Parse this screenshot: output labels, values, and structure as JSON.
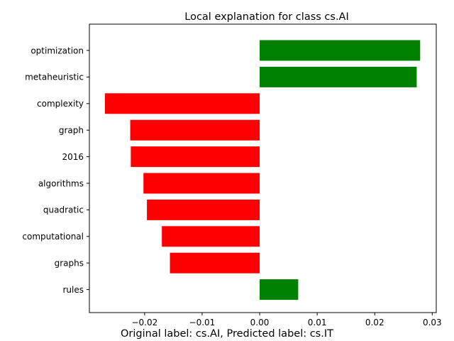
{
  "chart_data": {
    "type": "bar",
    "orientation": "horizontal",
    "title": "Local explanation for class cs.AI",
    "caption": "Original label: cs.AI, Predicted label: cs.IT",
    "categories": [
      "optimization",
      "metaheuristic",
      "complexity",
      "graph",
      "2016",
      "algorithms",
      "quadratic",
      "computational",
      "graphs",
      "rules"
    ],
    "values": [
      0.0279,
      0.0273,
      -0.0269,
      -0.0225,
      -0.0224,
      -0.0202,
      -0.0196,
      -0.017,
      -0.0156,
      0.0067
    ],
    "xlim": [
      -0.0296,
      0.0307
    ],
    "xticks": [
      -0.02,
      -0.01,
      0.0,
      0.01,
      0.02,
      0.03
    ],
    "xtick_labels": [
      "−0.02",
      "−0.01",
      "0.00",
      "0.01",
      "0.02",
      "0.03"
    ],
    "positive_color": "#008000",
    "negative_color": "#ff0000",
    "grid": false
  }
}
